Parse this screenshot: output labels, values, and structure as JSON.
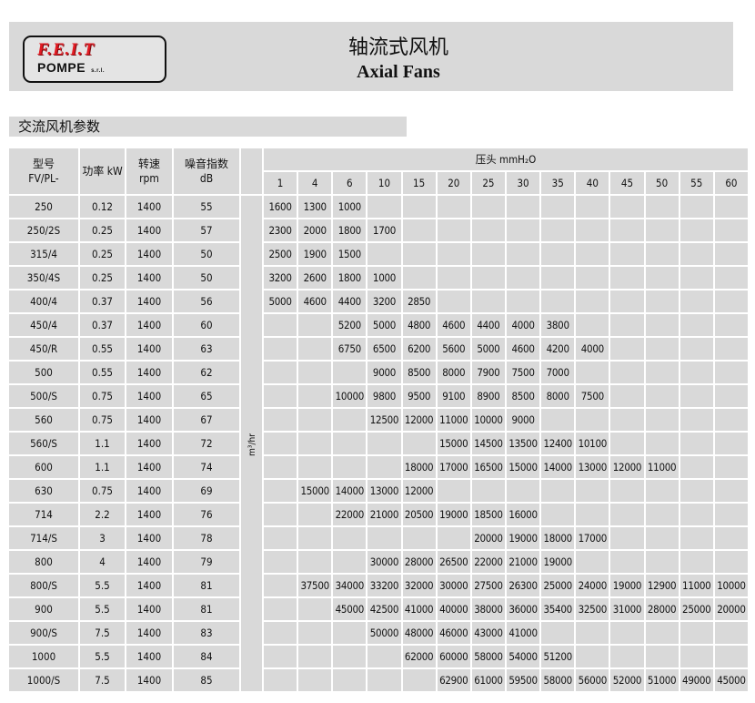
{
  "header": {
    "logo_brand": "F.E.I.T",
    "logo_sub": "POMPE",
    "logo_suffix": "s.r.l.",
    "title_cn": "轴流式风机",
    "title_en": "Axial Fans"
  },
  "section_title": "交流风机参数",
  "table": {
    "columns": {
      "model_cn": "型号",
      "model_en": "FV/PL-",
      "power": "功率 kW",
      "speed_cn": "转速",
      "speed_en": "rpm",
      "noise_cn": "噪音指数",
      "noise_en": "dB",
      "head": "压头 mmH₂O",
      "flow_unit": "m³/hr"
    },
    "head_values": [
      "1",
      "4",
      "6",
      "10",
      "15",
      "20",
      "25",
      "30",
      "35",
      "40",
      "45",
      "50",
      "55",
      "60"
    ],
    "rows": [
      {
        "model": "250",
        "kw": "0.12",
        "rpm": "1400",
        "db": "55",
        "flow": [
          "1600",
          "1300",
          "1000",
          "",
          "",
          "",
          "",
          "",
          "",
          "",
          "",
          "",
          "",
          ""
        ]
      },
      {
        "model": "250/2S",
        "kw": "0.25",
        "rpm": "1400",
        "db": "57",
        "flow": [
          "2300",
          "2000",
          "1800",
          "1700",
          "",
          "",
          "",
          "",
          "",
          "",
          "",
          "",
          "",
          ""
        ]
      },
      {
        "model": "315/4",
        "kw": "0.25",
        "rpm": "1400",
        "db": "50",
        "flow": [
          "2500",
          "1900",
          "1500",
          "",
          "",
          "",
          "",
          "",
          "",
          "",
          "",
          "",
          "",
          ""
        ]
      },
      {
        "model": "350/4S",
        "kw": "0.25",
        "rpm": "1400",
        "db": "50",
        "flow": [
          "3200",
          "2600",
          "1800",
          "1000",
          "",
          "",
          "",
          "",
          "",
          "",
          "",
          "",
          "",
          ""
        ]
      },
      {
        "model": "400/4",
        "kw": "0.37",
        "rpm": "1400",
        "db": "56",
        "flow": [
          "5000",
          "4600",
          "4400",
          "3200",
          "2850",
          "",
          "",
          "",
          "",
          "",
          "",
          "",
          "",
          ""
        ]
      },
      {
        "model": "450/4",
        "kw": "0.37",
        "rpm": "1400",
        "db": "60",
        "flow": [
          "",
          "",
          "5200",
          "5000",
          "4800",
          "4600",
          "4400",
          "4000",
          "3800",
          "",
          "",
          "",
          "",
          ""
        ]
      },
      {
        "model": "450/R",
        "kw": "0.55",
        "rpm": "1400",
        "db": "63",
        "flow": [
          "",
          "",
          "6750",
          "6500",
          "6200",
          "5600",
          "5000",
          "4600",
          "4200",
          "4000",
          "",
          "",
          "",
          ""
        ]
      },
      {
        "model": "500",
        "kw": "0.55",
        "rpm": "1400",
        "db": "62",
        "flow": [
          "",
          "",
          "",
          "9000",
          "8500",
          "8000",
          "7900",
          "7500",
          "7000",
          "",
          "",
          "",
          "",
          ""
        ]
      },
      {
        "model": "500/S",
        "kw": "0.75",
        "rpm": "1400",
        "db": "65",
        "flow": [
          "",
          "",
          "10000",
          "9800",
          "9500",
          "9100",
          "8900",
          "8500",
          "8000",
          "7500",
          "",
          "",
          "",
          ""
        ]
      },
      {
        "model": "560",
        "kw": "0.75",
        "rpm": "1400",
        "db": "67",
        "flow": [
          "",
          "",
          "",
          "12500",
          "12000",
          "11000",
          "10000",
          "9000",
          "",
          "",
          "",
          "",
          "",
          ""
        ]
      },
      {
        "model": "560/S",
        "kw": "1.1",
        "rpm": "1400",
        "db": "72",
        "flow": [
          "",
          "",
          "",
          "",
          "",
          "15000",
          "14500",
          "13500",
          "12400",
          "10100",
          "",
          "",
          "",
          ""
        ]
      },
      {
        "model": "600",
        "kw": "1.1",
        "rpm": "1400",
        "db": "74",
        "flow": [
          "",
          "",
          "",
          "",
          "18000",
          "17000",
          "16500",
          "15000",
          "14000",
          "13000",
          "12000",
          "11000",
          "",
          ""
        ]
      },
      {
        "model": "630",
        "kw": "0.75",
        "rpm": "1400",
        "db": "69",
        "flow": [
          "",
          "15000",
          "14000",
          "13000",
          "12000",
          "",
          "",
          "",
          "",
          "",
          "",
          "",
          "",
          ""
        ]
      },
      {
        "model": "714",
        "kw": "2.2",
        "rpm": "1400",
        "db": "76",
        "flow": [
          "",
          "",
          "22000",
          "21000",
          "20500",
          "19000",
          "18500",
          "16000",
          "",
          "",
          "",
          "",
          "",
          ""
        ]
      },
      {
        "model": "714/S",
        "kw": "3",
        "rpm": "1400",
        "db": "78",
        "flow": [
          "",
          "",
          "",
          "",
          "",
          "",
          "20000",
          "19000",
          "18000",
          "17000",
          "",
          "",
          "",
          ""
        ]
      },
      {
        "model": "800",
        "kw": "4",
        "rpm": "1400",
        "db": "79",
        "flow": [
          "",
          "",
          "",
          "30000",
          "28000",
          "26500",
          "22000",
          "21000",
          "19000",
          "",
          "",
          "",
          "",
          ""
        ]
      },
      {
        "model": "800/S",
        "kw": "5.5",
        "rpm": "1400",
        "db": "81",
        "flow": [
          "",
          "37500",
          "34000",
          "33200",
          "32000",
          "30000",
          "27500",
          "26300",
          "25000",
          "24000",
          "19000",
          "12900",
          "11000",
          "10000"
        ]
      },
      {
        "model": "900",
        "kw": "5.5",
        "rpm": "1400",
        "db": "81",
        "flow": [
          "",
          "",
          "45000",
          "42500",
          "41000",
          "40000",
          "38000",
          "36000",
          "35400",
          "32500",
          "31000",
          "28000",
          "25000",
          "20000"
        ]
      },
      {
        "model": "900/S",
        "kw": "7.5",
        "rpm": "1400",
        "db": "83",
        "flow": [
          "",
          "",
          "",
          "50000",
          "48000",
          "46000",
          "43000",
          "41000",
          "",
          "",
          "",
          "",
          "",
          ""
        ]
      },
      {
        "model": "1000",
        "kw": "5.5",
        "rpm": "1400",
        "db": "84",
        "flow": [
          "",
          "",
          "",
          "",
          "62000",
          "60000",
          "58000",
          "54000",
          "51200",
          "",
          "",
          "",
          "",
          ""
        ]
      },
      {
        "model": "1000/S",
        "kw": "7.5",
        "rpm": "1400",
        "db": "85",
        "flow": [
          "",
          "",
          "",
          "",
          "",
          "62900",
          "61000",
          "59500",
          "58000",
          "56000",
          "52000",
          "51000",
          "49000",
          "45000"
        ]
      }
    ]
  },
  "colors": {
    "panel": "#d9d9d9",
    "logo_red": "#e31b23"
  }
}
